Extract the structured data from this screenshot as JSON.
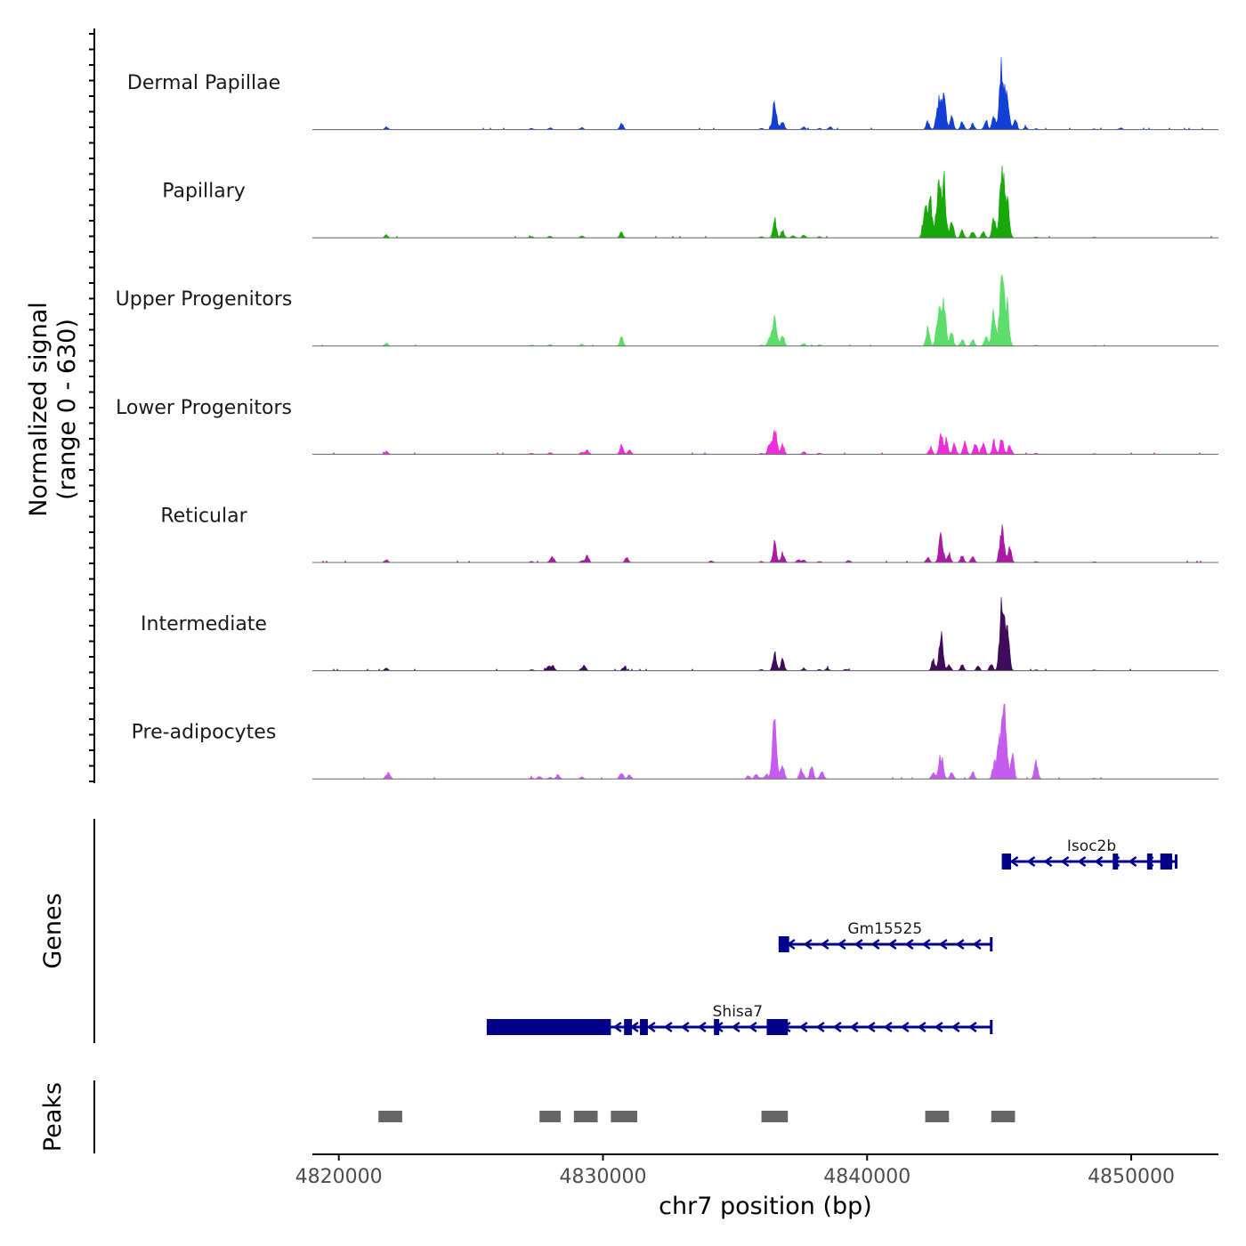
{
  "chart_data": {
    "type": "area",
    "title": "",
    "chromosome": "chr7",
    "xlabel": "chr7 position (bp)",
    "xlim": [
      4819000,
      4853300
    ],
    "xticks": [
      4820000,
      4830000,
      4840000,
      4850000
    ],
    "xtick_labels": [
      "4820000",
      "4830000",
      "4840000",
      "4850000"
    ],
    "ylabel": "Normalized signal",
    "ylabel_range": "(range 0 - 630)",
    "ylim": [
      0,
      630
    ],
    "baseline_noise": [
      [
        4821800,
        24
      ],
      [
        4827300,
        10
      ],
      [
        4828000,
        14
      ],
      [
        4829200,
        16
      ],
      [
        4836000,
        10
      ],
      [
        4837600,
        22
      ],
      [
        4838200,
        10
      ],
      [
        4846400,
        8
      ],
      [
        4848600,
        6
      ]
    ],
    "tracks": [
      {
        "name": "Dermal Papillae",
        "color": "#1240D6",
        "peaks": [
          [
            4830700,
            55
          ],
          [
            4836500,
            205
          ],
          [
            4836800,
            75
          ],
          [
            4838600,
            25
          ],
          [
            4842300,
            70
          ],
          [
            4842700,
            230
          ],
          [
            4842900,
            260
          ],
          [
            4843200,
            115
          ],
          [
            4843600,
            70
          ],
          [
            4844000,
            50
          ],
          [
            4844500,
            80
          ],
          [
            4844800,
            120
          ],
          [
            4845100,
            520
          ],
          [
            4845300,
            300
          ],
          [
            4845600,
            80
          ],
          [
            4846000,
            20
          ],
          [
            4849600,
            14
          ]
        ]
      },
      {
        "name": "Papillary",
        "color": "#19A80A",
        "peaks": [
          [
            4830700,
            45
          ],
          [
            4836500,
            165
          ],
          [
            4836800,
            60
          ],
          [
            4837200,
            20
          ],
          [
            4842200,
            250
          ],
          [
            4842400,
            310
          ],
          [
            4842700,
            420
          ],
          [
            4842900,
            480
          ],
          [
            4843200,
            170
          ],
          [
            4843600,
            60
          ],
          [
            4844000,
            60
          ],
          [
            4844400,
            50
          ],
          [
            4844800,
            160
          ],
          [
            4845100,
            630
          ],
          [
            4845300,
            300
          ]
        ]
      },
      {
        "name": "Upper Progenitors",
        "color": "#5CDD6C",
        "peaks": [
          [
            4830700,
            70
          ],
          [
            4836300,
            80
          ],
          [
            4836500,
            240
          ],
          [
            4836800,
            100
          ],
          [
            4842300,
            160
          ],
          [
            4842700,
            280
          ],
          [
            4842900,
            330
          ],
          [
            4843200,
            120
          ],
          [
            4843600,
            60
          ],
          [
            4844000,
            50
          ],
          [
            4844500,
            80
          ],
          [
            4844800,
            280
          ],
          [
            4845100,
            610
          ],
          [
            4845300,
            320
          ]
        ]
      },
      {
        "name": "Lower Progenitors",
        "color": "#EE2CDC",
        "peaks": [
          [
            4829400,
            35
          ],
          [
            4830700,
            80
          ],
          [
            4831000,
            35
          ],
          [
            4836300,
            80
          ],
          [
            4836500,
            220
          ],
          [
            4836800,
            90
          ],
          [
            4842400,
            60
          ],
          [
            4842800,
            170
          ],
          [
            4843000,
            110
          ],
          [
            4843300,
            80
          ],
          [
            4843700,
            100
          ],
          [
            4844100,
            110
          ],
          [
            4844400,
            90
          ],
          [
            4844800,
            110
          ],
          [
            4845100,
            160
          ],
          [
            4845400,
            80
          ]
        ]
      },
      {
        "name": "Reticular",
        "color": "#AA1AA6",
        "peaks": [
          [
            4828100,
            45
          ],
          [
            4829400,
            55
          ],
          [
            4830900,
            45
          ],
          [
            4834100,
            15
          ],
          [
            4836500,
            170
          ],
          [
            4836800,
            80
          ],
          [
            4837400,
            25
          ],
          [
            4839300,
            20
          ],
          [
            4842300,
            40
          ],
          [
            4842800,
            220
          ],
          [
            4843100,
            80
          ],
          [
            4843600,
            60
          ],
          [
            4844000,
            50
          ],
          [
            4845100,
            280
          ],
          [
            4845400,
            120
          ]
        ]
      },
      {
        "name": "Intermediate",
        "color": "#3E0C58",
        "peaks": [
          [
            4827900,
            30
          ],
          [
            4828100,
            40
          ],
          [
            4829300,
            35
          ],
          [
            4830800,
            35
          ],
          [
            4836500,
            165
          ],
          [
            4836800,
            90
          ],
          [
            4838500,
            20
          ],
          [
            4839200,
            15
          ],
          [
            4842500,
            90
          ],
          [
            4842800,
            290
          ],
          [
            4843100,
            60
          ],
          [
            4843600,
            50
          ],
          [
            4844200,
            40
          ],
          [
            4844700,
            60
          ],
          [
            4845100,
            620
          ],
          [
            4845300,
            350
          ]
        ]
      },
      {
        "name": "Pre-adipocytes",
        "color": "#C45CF0",
        "peaks": [
          [
            4821900,
            45
          ],
          [
            4827600,
            25
          ],
          [
            4828300,
            40
          ],
          [
            4830700,
            60
          ],
          [
            4831000,
            35
          ],
          [
            4835500,
            30
          ],
          [
            4835800,
            40
          ],
          [
            4836200,
            40
          ],
          [
            4836500,
            500
          ],
          [
            4836800,
            120
          ],
          [
            4837500,
            80
          ],
          [
            4837900,
            110
          ],
          [
            4838300,
            60
          ],
          [
            4842500,
            60
          ],
          [
            4842800,
            210
          ],
          [
            4843200,
            60
          ],
          [
            4844000,
            60
          ],
          [
            4844800,
            120
          ],
          [
            4845000,
            360
          ],
          [
            4845200,
            600
          ],
          [
            4845500,
            200
          ],
          [
            4846400,
            140
          ]
        ]
      }
    ],
    "genes_label": "Genes",
    "genes": [
      {
        "name": "Isoc2b",
        "strand": "-",
        "row": 0,
        "start": 4845100,
        "end": 4851700,
        "exons": [
          [
            4845100,
            4845450
          ],
          [
            4849300,
            4849500
          ],
          [
            4850600,
            4850800
          ],
          [
            4851100,
            4851550
          ]
        ]
      },
      {
        "name": "Gm15525",
        "strand": "-",
        "row": 1,
        "start": 4836650,
        "end": 4844700,
        "exons": [
          [
            4836650,
            4837050
          ]
        ]
      },
      {
        "name": "Shisa7",
        "strand": "-",
        "row": 2,
        "start": 4825600,
        "end": 4844700,
        "exons": [
          [
            4825600,
            4830300
          ],
          [
            4830800,
            4831100
          ],
          [
            4831400,
            4831700
          ],
          [
            4834200,
            4834400
          ],
          [
            4836200,
            4837000
          ]
        ]
      }
    ],
    "peaks_label": "Peaks",
    "peak_regions": [
      [
        4821500,
        4822400
      ],
      [
        4827600,
        4828400
      ],
      [
        4828900,
        4829800
      ],
      [
        4830300,
        4831300
      ],
      [
        4836000,
        4837000
      ],
      [
        4842200,
        4843100
      ],
      [
        4844700,
        4845600
      ]
    ]
  }
}
